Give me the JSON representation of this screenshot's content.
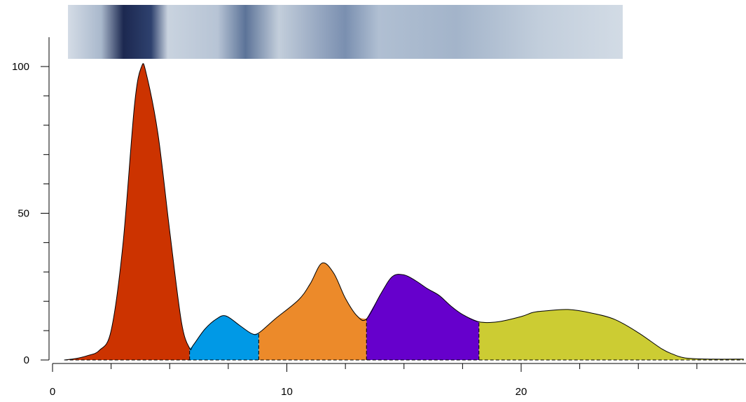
{
  "chart_data": {
    "type": "area",
    "x": [
      0.5,
      1.0,
      1.5,
      2.0,
      2.5,
      3.0,
      3.5,
      3.8,
      4.0,
      4.5,
      5.0,
      5.5,
      5.85,
      6.0,
      6.5,
      7.0,
      7.4,
      8.0,
      8.5,
      8.8,
      9.5,
      10.5,
      11.0,
      11.5,
      12.0,
      12.5,
      13.0,
      13.4,
      14.0,
      14.5,
      15.0,
      15.5,
      16.0,
      16.5,
      17.0,
      17.5,
      18.2,
      19.0,
      20.0,
      20.5,
      21.0,
      22.0,
      23.0,
      24.0,
      25.0,
      26.0,
      26.5,
      27.0,
      28.0,
      29.5
    ],
    "values": [
      0,
      0.5,
      1.5,
      3.3,
      10,
      39,
      87,
      100,
      97.6,
      77,
      44,
      13,
      4,
      5,
      10.5,
      14,
      15,
      11.7,
      9,
      9.2,
      14,
      20.5,
      26,
      33,
      29.6,
      21,
      15,
      14,
      22.4,
      28.4,
      29,
      27,
      24.3,
      22,
      18.4,
      15.5,
      13,
      13,
      14.8,
      16.2,
      16.7,
      17.2,
      16,
      13.8,
      9.3,
      3.8,
      1.9,
      0.7,
      0.3,
      0.3
    ],
    "regions": [
      {
        "color": "#cc3300",
        "from": 0.5,
        "to": 5.85
      },
      {
        "color": "#0099e6",
        "from": 5.85,
        "to": 8.8
      },
      {
        "color": "#ec8a2a",
        "from": 8.8,
        "to": 13.4
      },
      {
        "color": "#6600cc",
        "from": 13.4,
        "to": 18.2
      },
      {
        "color": "#cccc33",
        "from": 18.2,
        "to": 29.5
      }
    ],
    "xlim": [
      0,
      29.6
    ],
    "ylim": [
      0,
      110
    ],
    "xticks": [
      0,
      10,
      20
    ],
    "xminorticks": [
      2.5,
      5,
      7.5,
      12.5,
      15,
      17.5,
      22.5,
      25,
      27.5
    ],
    "yticks": [
      0,
      50,
      100
    ],
    "yminorticks": [
      10,
      20,
      30,
      40,
      60,
      70,
      80,
      90
    ]
  }
}
